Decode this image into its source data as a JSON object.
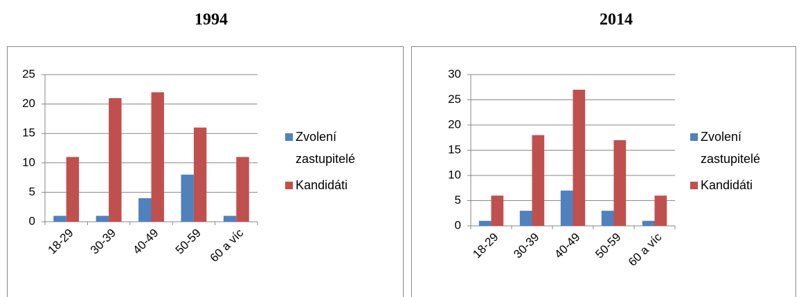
{
  "chart_data": [
    {
      "type": "bar",
      "title": "1994",
      "categories": [
        "18-29",
        "30-39",
        "40-49",
        "50-59",
        "60 a víc"
      ],
      "series": [
        {
          "name": "Zvolení zastupitelé",
          "color": "#4f81bd",
          "values": [
            1,
            1,
            4,
            8,
            1
          ]
        },
        {
          "name": "Kandidáti",
          "color": "#c0504d",
          "values": [
            11,
            21,
            22,
            16,
            11
          ]
        }
      ],
      "ylim": [
        0,
        25
      ],
      "yticks": [
        0,
        5,
        10,
        15,
        20,
        25
      ],
      "grid": true,
      "legend": "right"
    },
    {
      "type": "bar",
      "title": "2014",
      "categories": [
        "18-29",
        "30-39",
        "40-49",
        "50-59",
        "60 a víc"
      ],
      "series": [
        {
          "name": "Zvolení zastupitelé",
          "color": "#4f81bd",
          "values": [
            1,
            3,
            7,
            3,
            1
          ]
        },
        {
          "name": "Kandidáti",
          "color": "#c0504d",
          "values": [
            6,
            18,
            27,
            17,
            6
          ]
        }
      ],
      "ylim": [
        0,
        30
      ],
      "yticks": [
        0,
        5,
        10,
        15,
        20,
        25,
        30
      ],
      "grid": true,
      "legend": "right"
    }
  ]
}
